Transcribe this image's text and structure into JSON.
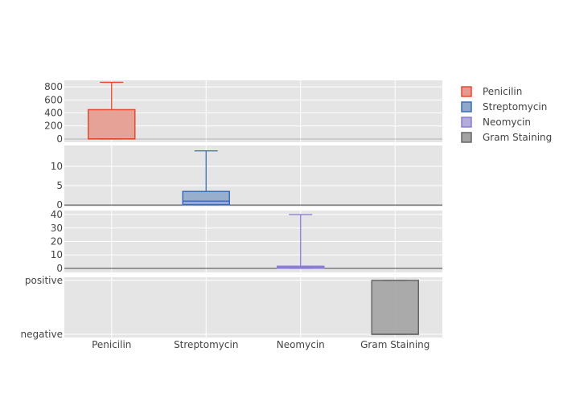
{
  "chart_data": {
    "type": "box",
    "categories": [
      "Penicilin",
      "Streptomycin",
      "Neomycin",
      "Gram Staining"
    ],
    "subplots": [
      {
        "name": "Penicilin",
        "color": "#e8492f",
        "fill": "#e59a8d",
        "yrange": [
          -50,
          900
        ],
        "ticks": [
          "0",
          "200",
          "400",
          "600",
          "800"
        ],
        "tickvals": [
          0,
          200,
          400,
          600,
          800
        ],
        "box": {
          "category": "Penicilin",
          "min": 0.001,
          "q1": 0.005,
          "median": 2,
          "q3": 450,
          "max": 870
        }
      },
      {
        "name": "Streptomycin",
        "color": "#3d6db5",
        "fill": "#8ea8ca",
        "yrange": [
          -0.4,
          15.4
        ],
        "ticks": [
          "0",
          "5",
          "10"
        ],
        "tickvals": [
          0,
          5,
          10
        ],
        "box": {
          "category": "Streptomycin",
          "min": 0.01,
          "q1": 0.1,
          "median": 1,
          "q3": 3.5,
          "max": 14
        }
      },
      {
        "name": "Neomycin",
        "color": "#8a7bd6",
        "fill": "#b3acd9",
        "yrange": [
          -3,
          43
        ],
        "ticks": [
          "0",
          "10",
          "20",
          "30",
          "40"
        ],
        "tickvals": [
          0,
          10,
          20,
          30,
          40
        ],
        "box": {
          "category": "Neomycin",
          "min": 0.002,
          "q1": 0.1,
          "median": 1,
          "q3": 1.6,
          "max": 40
        }
      },
      {
        "name": "Gram Staining",
        "color": "#666666",
        "fill": "#a3a3a3",
        "yrange": [
          -0.06,
          1.06
        ],
        "ticks": [
          "negative",
          "positive"
        ],
        "tickvals": [
          0,
          1
        ],
        "box": {
          "category": "Gram Staining",
          "min": 0,
          "q1": 0,
          "median": 0,
          "q3": 1,
          "max": 1
        }
      }
    ],
    "legend": {
      "placement": "top-right",
      "entries": [
        "Penicilin",
        "Streptomycin",
        "Neomycin",
        "Gram Staining"
      ]
    }
  }
}
